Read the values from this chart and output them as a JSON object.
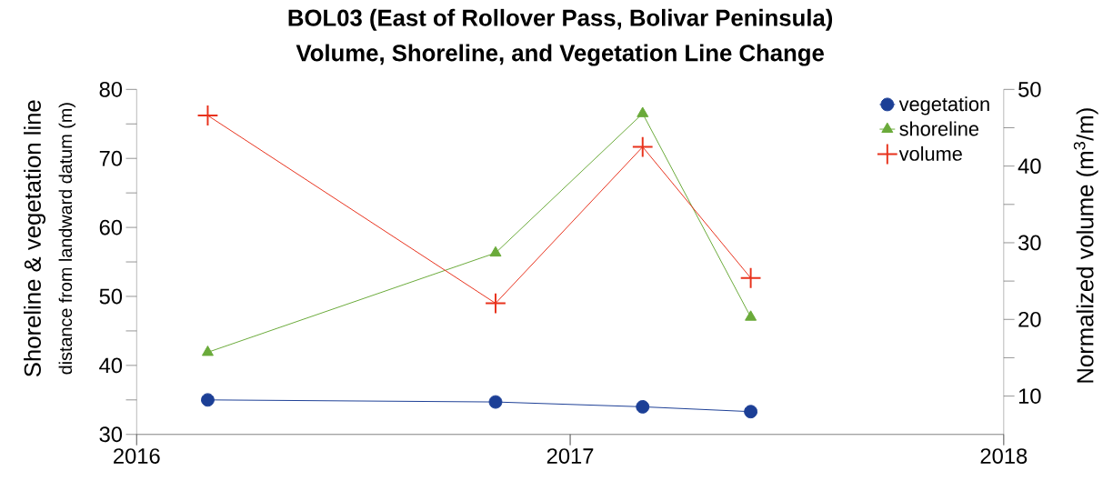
{
  "chart_data": {
    "type": "line",
    "title": "BOL03 (East of Rollover Pass, Bolivar Peninsula)",
    "subtitle": "Volume, Shoreline, and Vegetation Line Change",
    "ylabel": "Shoreline & vegetation line",
    "y2label": "Normalized volume (m$^{3}$/m)",
    "annotations": [
      "distance from landward datum (m)"
    ],
    "x": [
      "2016-03-01",
      "2016-10-30",
      "2017-03-03",
      "2017-06-02"
    ],
    "series": [
      {
        "name": "vegetation",
        "color": "#1c3f96",
        "marker": "circle",
        "values": [
          35.0,
          34.7,
          34.0,
          33.3
        ]
      },
      {
        "name": "shoreline",
        "color": "#6aaa3a",
        "marker": "triangle",
        "values": [
          41.9,
          56.3,
          76.5,
          47.0
        ]
      },
      {
        "name": "volume",
        "color": "#e8321c",
        "marker": "cross",
        "axis": "y2",
        "values": [
          46.6,
          22.1,
          42.5,
          25.4
        ]
      }
    ],
    "xlim": [
      "2016",
      "2018"
    ],
    "xticks": [
      "2016",
      "2017",
      "2018"
    ],
    "ylim": [
      30,
      80
    ],
    "yticks": [
      30,
      {
        "value": 35,
        "label": null
      },
      40,
      {
        "value": 45,
        "label": null
      },
      50,
      {
        "value": 55,
        "label": null
      },
      60,
      {
        "value": 65,
        "label": null
      },
      70,
      {
        "value": 75,
        "label": null
      },
      80
    ],
    "y2lim": [
      5,
      50
    ],
    "y2ticks": [
      10,
      {
        "value": 15,
        "label": null
      },
      20,
      {
        "value": 25,
        "label": null
      },
      30,
      {
        "value": 35,
        "label": null
      },
      40,
      {
        "value": 45,
        "label": null
      },
      50
    ],
    "grid": false,
    "legend": "top right",
    "line_style": "solid"
  }
}
